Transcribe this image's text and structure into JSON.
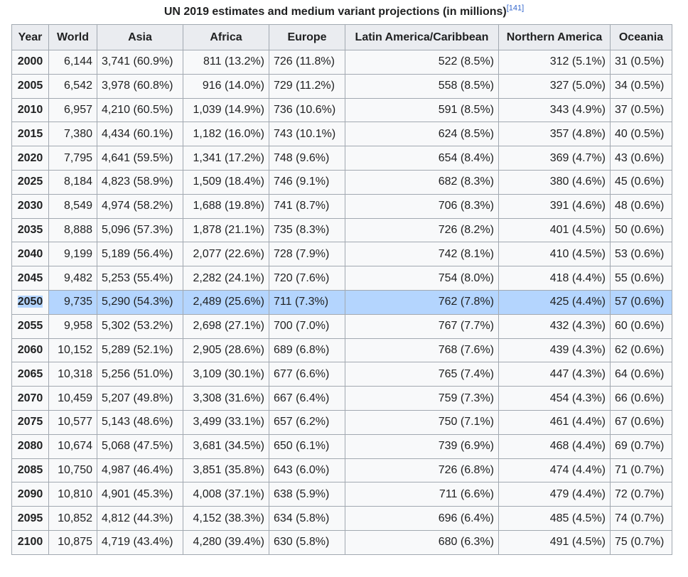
{
  "caption": {
    "text": "UN 2019 estimates and medium variant projections (in millions)",
    "ref": "[141]"
  },
  "headers": [
    "Year",
    "World",
    "Asia",
    "Africa",
    "Europe",
    "Latin America/Caribbean",
    "Northern America",
    "Oceania"
  ],
  "rows": [
    [
      "2000",
      "6,144",
      "3,741 (60.9%)",
      "811 (13.2%)",
      "726 (11.8%)",
      "522 (8.5%)",
      "312 (5.1%)",
      "31 (0.5%)"
    ],
    [
      "2005",
      "6,542",
      "3,978 (60.8%)",
      "916 (14.0%)",
      "729 (11.2%)",
      "558 (8.5%)",
      "327 (5.0%)",
      "34 (0.5%)"
    ],
    [
      "2010",
      "6,957",
      "4,210 (60.5%)",
      "1,039 (14.9%)",
      "736 (10.6%)",
      "591 (8.5%)",
      "343 (4.9%)",
      "37 (0.5%)"
    ],
    [
      "2015",
      "7,380",
      "4,434 (60.1%)",
      "1,182 (16.0%)",
      "743 (10.1%)",
      "624 (8.5%)",
      "357 (4.8%)",
      "40 (0.5%)"
    ],
    [
      "2020",
      "7,795",
      "4,641 (59.5%)",
      "1,341 (17.2%)",
      "748 (9.6%)",
      "654 (8.4%)",
      "369 (4.7%)",
      "43 (0.6%)"
    ],
    [
      "2025",
      "8,184",
      "4,823 (58.9%)",
      "1,509 (18.4%)",
      "746 (9.1%)",
      "682 (8.3%)",
      "380 (4.6%)",
      "45 (0.6%)"
    ],
    [
      "2030",
      "8,549",
      "4,974 (58.2%)",
      "1,688 (19.8%)",
      "741 (8.7%)",
      "706 (8.3%)",
      "391 (4.6%)",
      "48 (0.6%)"
    ],
    [
      "2035",
      "8,888",
      "5,096 (57.3%)",
      "1,878 (21.1%)",
      "735 (8.3%)",
      "726 (8.2%)",
      "401 (4.5%)",
      "50 (0.6%)"
    ],
    [
      "2040",
      "9,199",
      "5,189 (56.4%)",
      "2,077 (22.6%)",
      "728 (7.9%)",
      "742 (8.1%)",
      "410 (4.5%)",
      "53 (0.6%)"
    ],
    [
      "2045",
      "9,482",
      "5,253 (55.4%)",
      "2,282 (24.1%)",
      "720 (7.6%)",
      "754 (8.0%)",
      "418 (4.4%)",
      "55 (0.6%)"
    ],
    [
      "2050",
      "9,735",
      "5,290 (54.3%)",
      "2,489 (25.6%)",
      "711 (7.3%)",
      "762 (7.8%)",
      "425 (4.4%)",
      "57 (0.6%)"
    ],
    [
      "2055",
      "9,958",
      "5,302 (53.2%)",
      "2,698 (27.1%)",
      "700 (7.0%)",
      "767 (7.7%)",
      "432 (4.3%)",
      "60 (0.6%)"
    ],
    [
      "2060",
      "10,152",
      "5,289 (52.1%)",
      "2,905 (28.6%)",
      "689 (6.8%)",
      "768 (7.6%)",
      "439 (4.3%)",
      "62 (0.6%)"
    ],
    [
      "2065",
      "10,318",
      "5,256 (51.0%)",
      "3,109 (30.1%)",
      "677 (6.6%)",
      "765 (7.4%)",
      "447 (4.3%)",
      "64 (0.6%)"
    ],
    [
      "2070",
      "10,459",
      "5,207 (49.8%)",
      "3,308 (31.6%)",
      "667 (6.4%)",
      "759 (7.3%)",
      "454 (4.3%)",
      "66 (0.6%)"
    ],
    [
      "2075",
      "10,577",
      "5,143 (48.6%)",
      "3,499 (33.1%)",
      "657 (6.2%)",
      "750 (7.1%)",
      "461 (4.4%)",
      "67 (0.6%)"
    ],
    [
      "2080",
      "10,674",
      "5,068 (47.5%)",
      "3,681 (34.5%)",
      "650 (6.1%)",
      "739 (6.9%)",
      "468 (4.4%)",
      "69 (0.7%)"
    ],
    [
      "2085",
      "10,750",
      "4,987 (46.4%)",
      "3,851 (35.8%)",
      "643 (6.0%)",
      "726 (6.8%)",
      "474 (4.4%)",
      "71 (0.7%)"
    ],
    [
      "2090",
      "10,810",
      "4,901 (45.3%)",
      "4,008 (37.1%)",
      "638 (5.9%)",
      "711 (6.6%)",
      "479 (4.4%)",
      "72 (0.7%)"
    ],
    [
      "2095",
      "10,852",
      "4,812 (44.3%)",
      "4,152 (38.3%)",
      "634 (5.8%)",
      "696 (6.4%)",
      "485 (4.5%)",
      "74 (0.7%)"
    ],
    [
      "2100",
      "10,875",
      "4,719 (43.4%)",
      "4,280 (39.4%)",
      "630 (5.8%)",
      "680 (6.3%)",
      "491 (4.5%)",
      "75 (0.7%)"
    ]
  ],
  "highlighted_row": "2050",
  "colors": {
    "selection": "#b4d5fe",
    "header_bg": "#eaecf0",
    "cell_bg": "#f8f9fa",
    "border": "#a2a9b1",
    "link": "#3366cc"
  }
}
